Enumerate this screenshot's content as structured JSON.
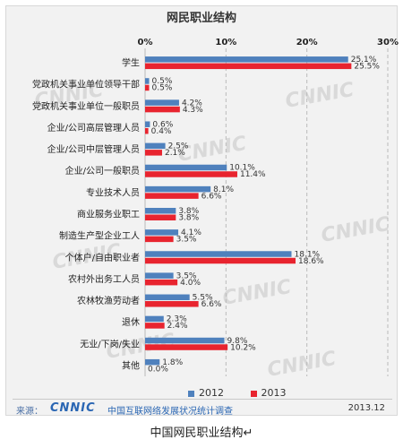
{
  "chart_data": {
    "type": "bar",
    "orientation": "horizontal",
    "title": "网民职业结构",
    "categories": [
      "学生",
      "党政机关事业单位领导干部",
      "党政机关事业单位一般职员",
      "企业/公司高层管理人员",
      "企业/公司中层管理人员",
      "企业/公司一般职员",
      "专业技术人员",
      "商业服务业职工",
      "制造生产型企业工人",
      "个体户/自由职业者",
      "农村外出务工人员",
      "农林牧渔劳动者",
      "退休",
      "无业/下岗/失业",
      "其他"
    ],
    "series": [
      {
        "name": "2012",
        "color": "#4f81bd",
        "values": [
          25.1,
          0.5,
          4.2,
          0.6,
          2.5,
          10.1,
          8.1,
          3.8,
          4.1,
          18.1,
          3.5,
          5.5,
          2.3,
          9.8,
          1.8
        ],
        "labels": [
          "25.1%",
          "0.5%",
          "4.2%",
          "0.6%",
          "2.5%",
          "10.1%",
          "8.1%",
          "3.8%",
          "4.1%",
          "18.1%",
          "3.5%",
          "5.5%",
          "2.3%",
          "9.8%",
          "1.8%"
        ]
      },
      {
        "name": "2013",
        "color": "#e8242f",
        "values": [
          25.5,
          0.5,
          4.3,
          0.4,
          2.1,
          11.4,
          6.6,
          3.8,
          3.5,
          18.6,
          4.0,
          6.6,
          2.4,
          10.2,
          0.0
        ],
        "labels": [
          "25.5%",
          "0.5%",
          "4.3%",
          "0.4%",
          "2.1%",
          "11.4%",
          "6.6%",
          "3.8%",
          "3.5%",
          "18.6%",
          "4.0%",
          "6.6%",
          "2.4%",
          "10.2%",
          "0.0%"
        ]
      }
    ],
    "xlim": [
      0,
      30
    ],
    "ticks": [
      0,
      10,
      20,
      30
    ],
    "tick_labels": [
      "0%",
      "10%",
      "20%",
      "30%"
    ],
    "grid": true,
    "legend_position": "bottom"
  },
  "watermark": "CNNIC",
  "footer": {
    "source_label": "来源：",
    "logo_text": "CNNIC",
    "org_name": "中国互联网络发展状况统计调查",
    "date": "2013.12"
  },
  "caption": "中国网民职业结构↵"
}
